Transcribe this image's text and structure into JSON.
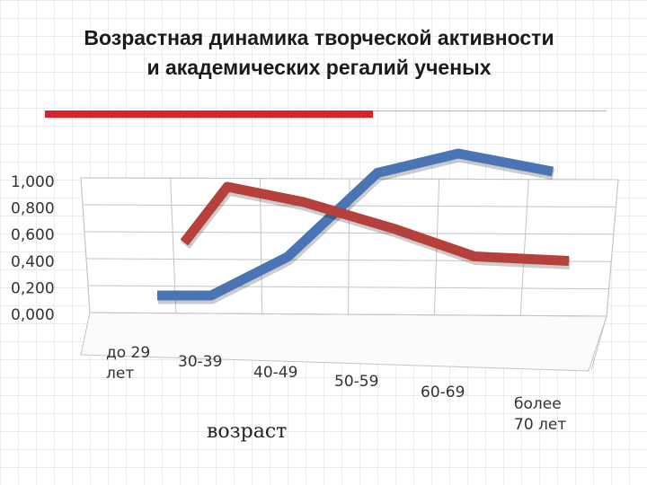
{
  "slide": {
    "title_line1": "Возрастная динамика творческой активности",
    "title_line2": "и академических регалий ученых"
  },
  "chart_data": {
    "type": "line",
    "title": "",
    "xlabel": "возраст",
    "ylabel": "",
    "ylim": [
      0,
      1
    ],
    "yticks": [
      "1,000",
      "0,800",
      "0,600",
      "0,400",
      "0,200",
      "0,000"
    ],
    "categories": [
      [
        "до 29",
        "лет"
      ],
      [
        "30-39"
      ],
      [
        "40-49"
      ],
      [
        "50-59"
      ],
      [
        "60-69"
      ],
      [
        "более",
        "70 лет"
      ]
    ],
    "series": [
      {
        "color": "#4a74b3",
        "values": [
          0.06,
          0.06,
          0.3,
          0.85,
          0.86,
          0.58
        ]
      },
      {
        "color": "#b6403c",
        "values": [
          0.44,
          1.0,
          0.84,
          0.57,
          0.23,
          0.05
        ]
      }
    ],
    "grid": true,
    "legend": "none"
  }
}
